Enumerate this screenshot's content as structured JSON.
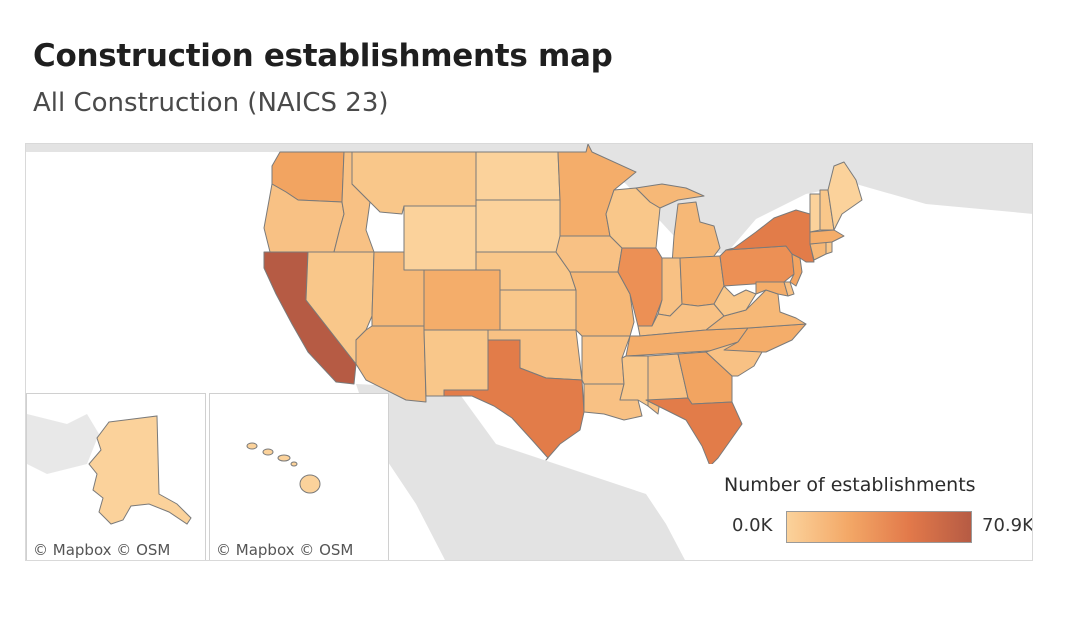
{
  "title": "Construction establishments map",
  "subtitle": "All Construction (NAICS 23)",
  "legend": {
    "title": "Number  of establishments",
    "min_label": "0.0K",
    "max_label": "70.9K",
    "color_low": "#fbd29b",
    "color_high": "#b65b44"
  },
  "attribution": {
    "alaska": "© Mapbox  © OSM",
    "hawaii": "© Mapbox  © OSM"
  },
  "colors": {
    "land": "#e3e3e3",
    "water": "#ffffff",
    "state_border": "#7a7a7a"
  }
}
